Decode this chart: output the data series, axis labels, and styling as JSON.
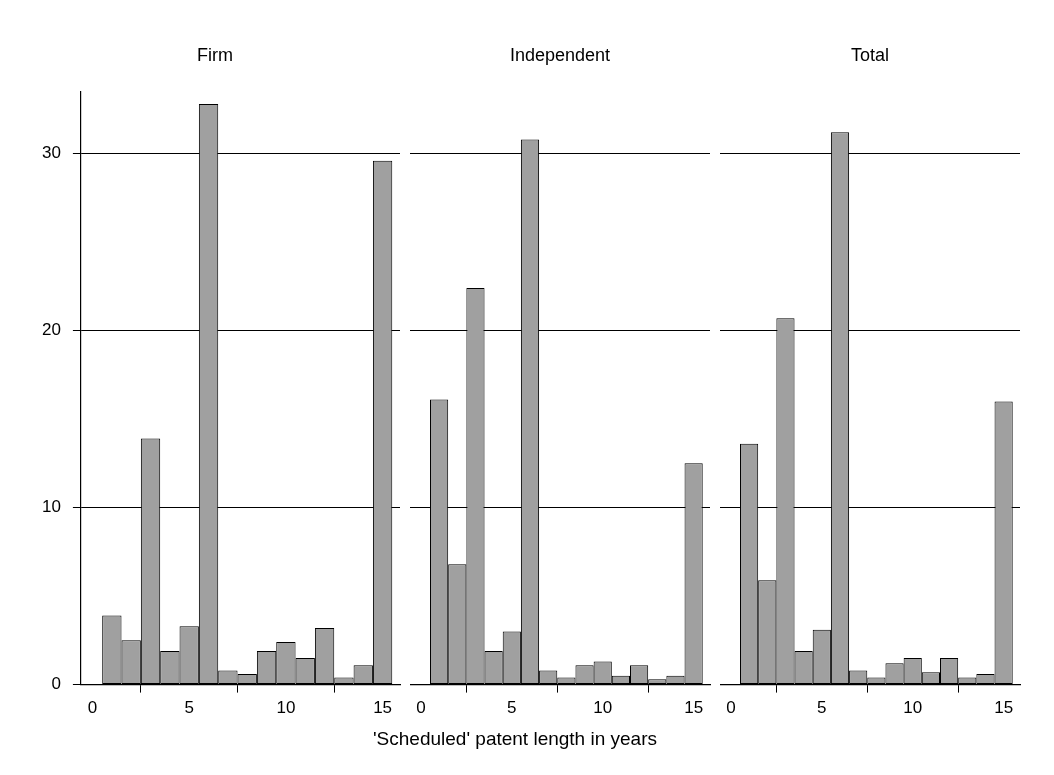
{
  "chart_data": [
    {
      "type": "histogram",
      "title": "Firm",
      "bins": [
        0.5,
        1.5,
        2.5,
        3.5,
        4.5,
        5.5,
        6.5,
        7.5,
        8.5,
        9.5,
        10.5,
        11.5,
        12.5,
        13.5,
        14.5,
        15.5
      ],
      "values": [
        3.9,
        2.5,
        13.9,
        1.9,
        3.3,
        32.8,
        0.8,
        0.6,
        1.9,
        2.4,
        1.5,
        3.2,
        0.4,
        1.1,
        29.6
      ],
      "color": "#a0a0a0",
      "xlim": [
        -0.6,
        15.9
      ],
      "xticks": [
        0,
        5,
        10,
        15
      ],
      "ylim": [
        0,
        33.5
      ],
      "yticks": [
        0,
        10,
        20,
        30
      ],
      "grid": "y",
      "legend": false
    },
    {
      "type": "histogram",
      "title": "Independent",
      "xlabel": "'Scheduled' patent length in years",
      "bins": [
        0.5,
        1.5,
        2.5,
        3.5,
        4.5,
        5.5,
        6.5,
        7.5,
        8.5,
        9.5,
        10.5,
        11.5,
        12.5,
        13.5,
        14.5,
        15.5
      ],
      "values": [
        16.1,
        6.8,
        22.4,
        1.9,
        3.0,
        30.8,
        0.8,
        0.4,
        1.1,
        1.3,
        0.5,
        1.1,
        0.3,
        0.5,
        12.5
      ],
      "color": "#a0a0a0",
      "xlim": [
        -0.6,
        15.9
      ],
      "xticks": [
        0,
        5,
        10,
        15
      ],
      "yticks": [
        0,
        10,
        20,
        30
      ],
      "grid": "y",
      "legend": false,
      "tick_labels": "x"
    },
    {
      "type": "histogram",
      "title": "Total",
      "bins": [
        0.5,
        1.5,
        2.5,
        3.5,
        4.5,
        5.5,
        6.5,
        7.5,
        8.5,
        9.5,
        10.5,
        11.5,
        12.5,
        13.5,
        14.5,
        15.5
      ],
      "values": [
        13.6,
        5.9,
        20.7,
        1.9,
        3.1,
        31.2,
        0.8,
        0.4,
        1.2,
        1.5,
        0.7,
        1.5,
        0.4,
        0.6,
        16.0
      ],
      "color": "#a0a0a0",
      "xlim": [
        -0.6,
        15.9
      ],
      "xticks": [
        0,
        5,
        10,
        15
      ],
      "yticks": [
        0,
        10,
        20,
        30
      ],
      "grid": "y",
      "legend": false,
      "tick_labels": "x"
    }
  ]
}
